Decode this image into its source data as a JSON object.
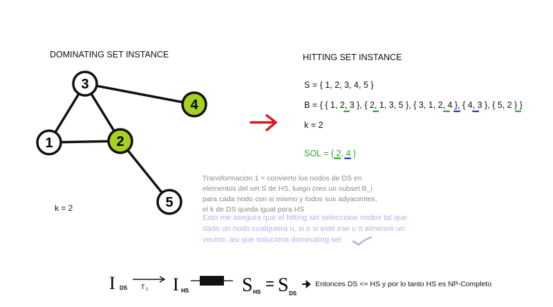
{
  "dominating": {
    "title": "DOMINATING SET INSTANCE",
    "k_label": "k = 2",
    "nodes": [
      {
        "id": "n1",
        "label": "1",
        "fill": "#ffffff"
      },
      {
        "id": "n2",
        "label": "2",
        "fill": "#a5d11f"
      },
      {
        "id": "n3",
        "label": "3",
        "fill": "#ffffff"
      },
      {
        "id": "n4",
        "label": "4",
        "fill": "#a5d11f"
      },
      {
        "id": "n5",
        "label": "5",
        "fill": "#ffffff"
      }
    ],
    "edges": [
      [
        "n1",
        "n2"
      ],
      [
        "n1",
        "n3"
      ],
      [
        "n3",
        "n2"
      ],
      [
        "n3",
        "n4"
      ],
      [
        "n2",
        "n5"
      ]
    ]
  },
  "hitting": {
    "title": "HITTING SET INSTANCE",
    "S_line": "S = {  1, 2, 3, 4, 5  }",
    "B_line": "B = {  { 1, 2, 3 }, { 2, 1, 3, 5 }, { 3, 1, 2, 4 }, { 4, 3 }, { 5, 2 }  }",
    "k_label": "k = 2",
    "sol_label": "SOL = { 2, 4 }"
  },
  "transform_text": [
    "Transformacion 1 = convierto los nodos de DS en",
    "elementos del set S de HS, luego creo un subset B_i",
    "para cada nodo con si mismo y todos sus adyacentes,",
    "el k de DS queda igual para HS"
  ],
  "note_text": [
    "Esto me asegura que el hitting set seleccione nodos tal que",
    "dado un nodo cualquiera u, si o si este ese u o almenos un",
    "vecino. asi que soluciona dominating set"
  ],
  "reduction": {
    "I_ds": "I",
    "ds_sub": "DS",
    "t1": "T",
    "t1_sub": "1",
    "I_hs": "I",
    "hs_sub": "HS",
    "S_hs": "S",
    "S_hs_sub": "HS",
    "equals": "=",
    "S_ds": "S",
    "S_ds_sub": "DS",
    "conclusion": "Entonces DS <= HS y por lo tanto HS es NP-Completo"
  },
  "colors": {
    "node_green": "#a5d11f",
    "arrow_red": "#e0161e",
    "sol_green": "#2aa52a",
    "underline_green": "#22aa22",
    "underline_blue": "#2233cc",
    "note_lavender": "#b6b0e6"
  }
}
